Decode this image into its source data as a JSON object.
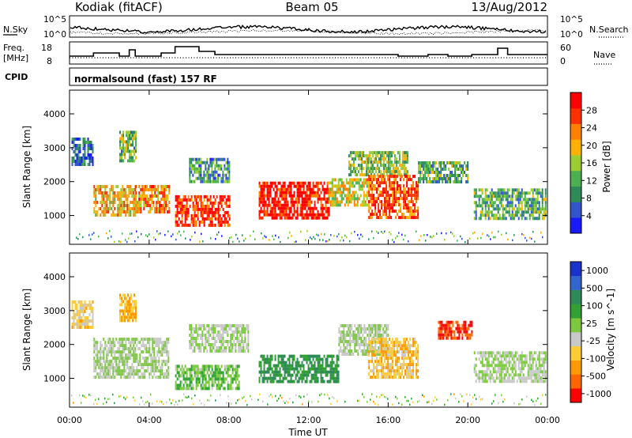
{
  "header": {
    "station": "Kodiak (fitACF)",
    "beam": "Beam 05",
    "date": "13/Aug/2012"
  },
  "summary_panels": {
    "noise": {
      "left_label": "N.Sky",
      "right_label": "N.Search",
      "left_ticks": [
        "10^5",
        "10^0"
      ],
      "right_ticks": [
        "10^5",
        "10^0"
      ]
    },
    "freq": {
      "left_label_1": "Freq.",
      "left_label_2": "[MHz]",
      "right_label": "Nave",
      "left_ticks": [
        "18",
        "8"
      ],
      "right_ticks": [
        "60",
        "0"
      ]
    },
    "cpid": {
      "label": "CPID",
      "text": "normalsound (fast) 157 RF"
    }
  },
  "colors": {
    "power_scale": [
      "#1a1aff",
      "#3355cc",
      "#2e8b57",
      "#4caf50",
      "#9acd32",
      "#ffb000",
      "#ff7f00",
      "#ff3000",
      "#ff0000"
    ],
    "velocity_scale": [
      "#ff0000",
      "#ff6600",
      "#ff9900",
      "#ffcc33",
      "#c8c8c8",
      "#7cc83e",
      "#33a033",
      "#2e8b57",
      "#3366cc",
      "#1a33cc"
    ]
  },
  "chart_data": [
    {
      "type": "heatmap",
      "title": "",
      "xlabel": "Time UT",
      "ylabel": "Slant Range [km]",
      "xticks": [
        "00:00",
        "04:00",
        "08:00",
        "12:00",
        "16:00",
        "20:00",
        "00:00"
      ],
      "yticks": [
        "1000",
        "2000",
        "3000",
        "4000"
      ],
      "xlim": [
        0,
        24
      ],
      "ylim": [
        150,
        4700
      ],
      "colorbar": {
        "label": "Power [dB]",
        "ticks": [
          "4",
          "8",
          "12",
          "16",
          "20",
          "24",
          "28"
        ],
        "range": [
          0,
          32
        ]
      },
      "echo_regions": [
        {
          "t0": 0.1,
          "t1": 1.2,
          "r0": 2500,
          "r1": 3300,
          "value": 6
        },
        {
          "t0": 1.2,
          "t1": 3.3,
          "r0": 1000,
          "r1": 1900,
          "value": 20
        },
        {
          "t0": 2.5,
          "t1": 3.3,
          "r0": 2600,
          "r1": 3500,
          "value": 14
        },
        {
          "t0": 3.3,
          "t1": 5.0,
          "r0": 1100,
          "r1": 1900,
          "value": 22
        },
        {
          "t0": 5.3,
          "t1": 8.0,
          "r0": 700,
          "r1": 1600,
          "value": 28
        },
        {
          "t0": 6.0,
          "t1": 8.0,
          "r0": 2000,
          "r1": 2700,
          "value": 10
        },
        {
          "t0": 9.5,
          "t1": 13.0,
          "r0": 900,
          "r1": 2000,
          "value": 30
        },
        {
          "t0": 13.0,
          "t1": 15.0,
          "r0": 1300,
          "r1": 2100,
          "value": 18
        },
        {
          "t0": 14.0,
          "t1": 17.0,
          "r0": 2200,
          "r1": 2900,
          "value": 14
        },
        {
          "t0": 15.0,
          "t1": 17.5,
          "r0": 900,
          "r1": 2200,
          "value": 26
        },
        {
          "t0": 17.5,
          "t1": 20.0,
          "r0": 2000,
          "r1": 2600,
          "value": 12
        },
        {
          "t0": 20.3,
          "t1": 23.9,
          "r0": 900,
          "r1": 1800,
          "value": 12
        }
      ]
    },
    {
      "type": "heatmap",
      "title": "",
      "xlabel": "Time UT",
      "ylabel": "Slant Range [km]",
      "xticks": [
        "00:00",
        "04:00",
        "08:00",
        "12:00",
        "16:00",
        "20:00",
        "00:00"
      ],
      "yticks": [
        "1000",
        "2000",
        "3000",
        "4000"
      ],
      "xlim": [
        0,
        24
      ],
      "ylim": [
        150,
        4700
      ],
      "colorbar": {
        "label": "Velocity [m s^-1]",
        "ticks": [
          "1000",
          "500",
          "100",
          "25",
          "-25",
          "-100",
          "-500",
          "-1000"
        ],
        "range": [
          -1250,
          1250
        ]
      },
      "echo_regions": [
        {
          "t0": 0.1,
          "t1": 1.2,
          "r0": 2500,
          "r1": 3300,
          "value": -300
        },
        {
          "t0": 1.2,
          "t1": 5.0,
          "r0": 1000,
          "r1": 2200,
          "value": 0
        },
        {
          "t0": 2.5,
          "t1": 3.3,
          "r0": 2700,
          "r1": 3500,
          "value": -500
        },
        {
          "t0": 5.3,
          "t1": 8.5,
          "r0": 700,
          "r1": 1400,
          "value": 200
        },
        {
          "t0": 6.0,
          "t1": 9.0,
          "r0": 1800,
          "r1": 2600,
          "value": 0
        },
        {
          "t0": 9.5,
          "t1": 13.5,
          "r0": 900,
          "r1": 1700,
          "value": 500
        },
        {
          "t0": 13.5,
          "t1": 16.0,
          "r0": 1700,
          "r1": 2600,
          "value": 0
        },
        {
          "t0": 15.0,
          "t1": 17.5,
          "r0": 1000,
          "r1": 2200,
          "value": -400
        },
        {
          "t0": 18.5,
          "t1": 20.2,
          "r0": 2200,
          "r1": 2700,
          "value": -1000
        },
        {
          "t0": 20.3,
          "t1": 23.9,
          "r0": 900,
          "r1": 1800,
          "value": 0
        }
      ]
    }
  ]
}
